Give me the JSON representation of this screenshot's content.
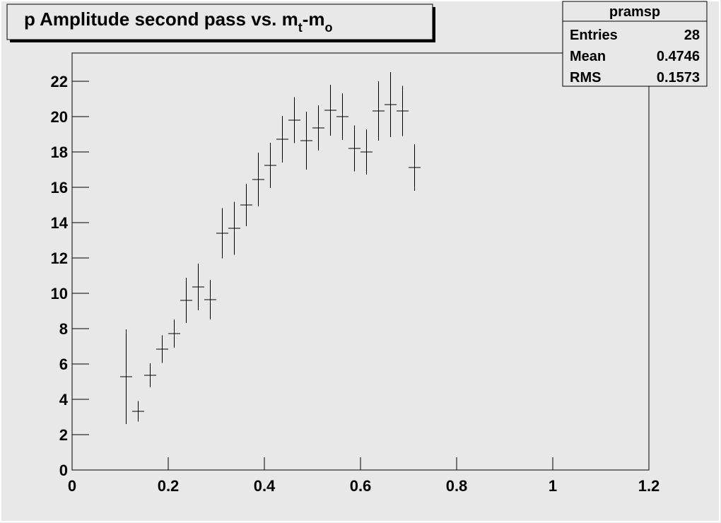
{
  "chart_data": {
    "type": "errorbar",
    "title": [
      "p Amplitude second pass vs. m",
      "t",
      "-m",
      "o"
    ],
    "stats": {
      "name": "pramsp",
      "rows": [
        [
          "Entries",
          28
        ],
        [
          "Mean",
          0.4746
        ],
        [
          "RMS",
          0.1573
        ]
      ]
    },
    "x": [
      0.1125,
      0.1375,
      0.1625,
      0.1875,
      0.2125,
      0.2375,
      0.2625,
      0.2875,
      0.3125,
      0.3375,
      0.3625,
      0.3875,
      0.4125,
      0.4375,
      0.4625,
      0.4875,
      0.5125,
      0.5375,
      0.5625,
      0.5875,
      0.6125,
      0.6375,
      0.6625,
      0.6875,
      0.7125
    ],
    "values": [
      5.28,
      3.32,
      5.36,
      6.84,
      7.72,
      9.6,
      10.36,
      9.64,
      13.4,
      13.68,
      15.0,
      16.44,
      17.24,
      18.72,
      19.8,
      18.64,
      19.36,
      20.36,
      20.0,
      18.2,
      18.0,
      20.32,
      20.68,
      20.32,
      17.12
    ],
    "errors": [
      2.68,
      0.58,
      0.68,
      0.78,
      0.8,
      1.28,
      1.32,
      1.12,
      1.42,
      1.5,
      1.2,
      1.52,
      1.28,
      1.32,
      1.3,
      1.64,
      1.28,
      1.44,
      1.32,
      1.3,
      1.28,
      1.68,
      1.84,
      1.42,
      1.32
    ],
    "color": "#000000",
    "xlim": [
      0,
      1.2
    ],
    "ylim": [
      0,
      23.6
    ],
    "xticks": [
      0,
      0.2,
      0.4,
      0.6,
      0.8,
      1,
      1.2
    ],
    "yticks": [
      0,
      2,
      4,
      6,
      8,
      10,
      12,
      14,
      16,
      18,
      20,
      22
    ]
  }
}
